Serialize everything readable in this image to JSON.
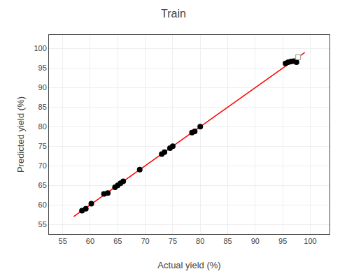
{
  "chart_data": {
    "type": "scatter",
    "title": "Train",
    "xlabel": "Actual yield (%)",
    "ylabel": "Predicted yield (%)",
    "xlim": [
      52.5,
      103.5
    ],
    "ylim": [
      52.5,
      103.5
    ],
    "xticks": [
      55,
      60,
      65,
      70,
      75,
      80,
      85,
      90,
      95,
      100
    ],
    "yticks": [
      55,
      60,
      65,
      70,
      75,
      80,
      85,
      90,
      95,
      100
    ],
    "grid": true,
    "series": [
      {
        "type": "line",
        "color": "#ff0000",
        "x": [
          57,
          99
        ],
        "values": [
          57,
          99
        ]
      },
      {
        "type": "scatter",
        "color": "#000000",
        "x": [
          58.5,
          59.2,
          60.2,
          62.5,
          63.2,
          64.5,
          65.0,
          65.5,
          66.0,
          69.0,
          73.0,
          73.5,
          74.5,
          75.0,
          78.5,
          79.0,
          80.0,
          95.5,
          96.0,
          96.5,
          97.0,
          97.5
        ],
        "values": [
          58.5,
          59.0,
          60.3,
          62.8,
          63.0,
          64.5,
          65.0,
          65.5,
          66.0,
          69.0,
          73.0,
          73.5,
          74.5,
          75.0,
          78.5,
          78.8,
          80.0,
          96.2,
          96.5,
          96.7,
          96.8,
          96.5
        ]
      },
      {
        "type": "scatter",
        "marker": "square",
        "color": "#ffffff",
        "x": [
          97.8
        ],
        "values": [
          97.8
        ]
      }
    ]
  }
}
